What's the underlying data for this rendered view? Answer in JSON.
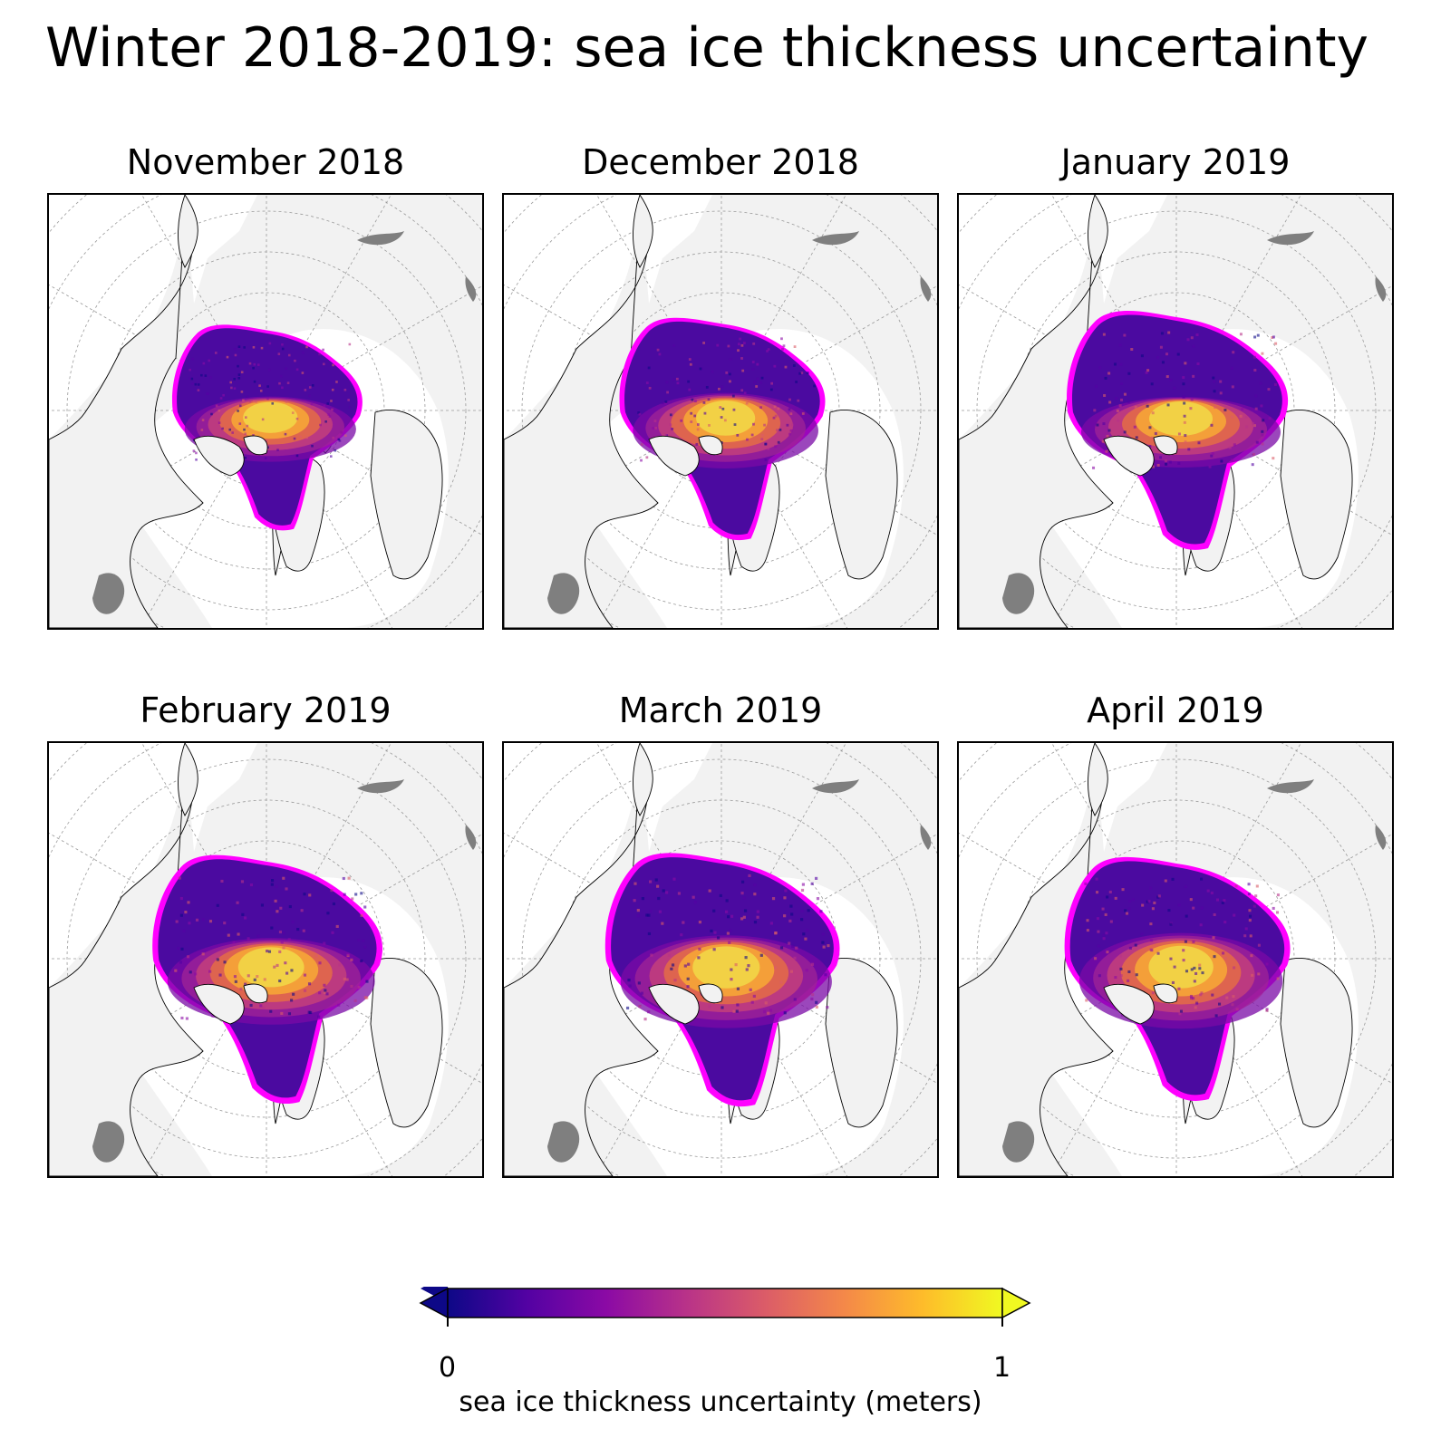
{
  "title": "Winter 2018-2019: sea ice thickness uncertainty",
  "panels": [
    {
      "title": "November 2018",
      "ice_scale": 0.86,
      "warm": 0.55
    },
    {
      "title": "December 2018",
      "ice_scale": 0.93,
      "warm": 0.6
    },
    {
      "title": "January 2019",
      "ice_scale": 1.0,
      "warm": 0.5
    },
    {
      "title": "February 2019",
      "ice_scale": 1.04,
      "warm": 0.62
    },
    {
      "title": "March 2019",
      "ice_scale": 1.06,
      "warm": 0.66
    },
    {
      "title": "April 2019",
      "ice_scale": 1.02,
      "warm": 0.72
    }
  ],
  "colorbar": {
    "label": "sea ice thickness uncertainty (meters)",
    "min_label": "0",
    "max_label": "1",
    "range": [
      0,
      1
    ],
    "colormap": "plasma",
    "extend": "both",
    "colors": [
      "#0d0887",
      "#5302a3",
      "#8b0aa5",
      "#b83289",
      "#db5c68",
      "#f48849",
      "#febc2a",
      "#f0f921"
    ]
  },
  "colors": {
    "land": "#f2f2f2",
    "ocean": "#ffffff",
    "lakes": "#7f7f7f",
    "ice_edge": "#ff00ff",
    "graticule": "#9a9a9a"
  }
}
